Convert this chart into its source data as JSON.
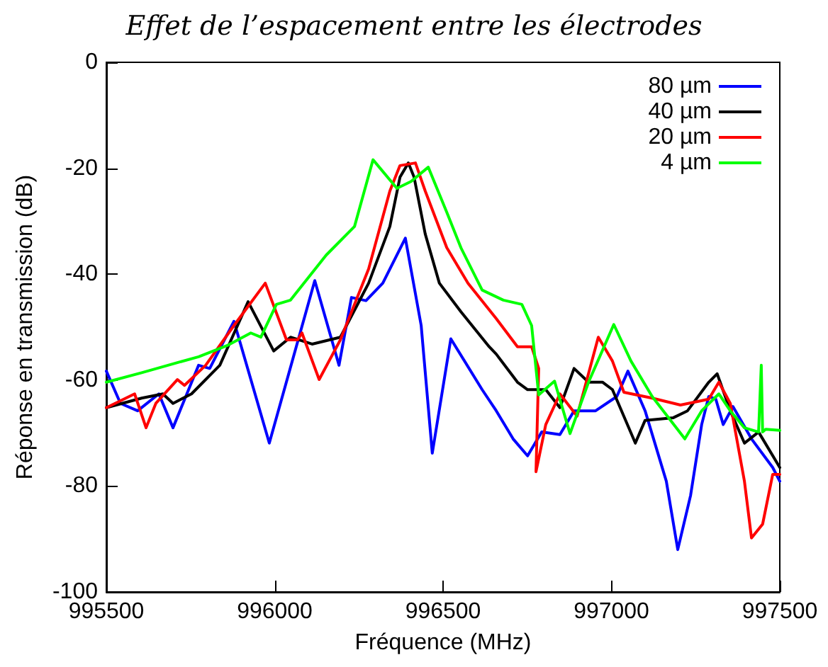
{
  "chart_data": {
    "type": "line",
    "title": "Effet de l’espacement entre les électrodes",
    "xlabel": "Fréquence (MHz)",
    "ylabel": "Réponse en transmission (dB)",
    "xlim": [
      995500,
      997500
    ],
    "xticks": [
      995500,
      996000,
      996500,
      997000,
      997500
    ],
    "ylim": [
      -100,
      0
    ],
    "yticks": [
      -100,
      -80,
      -60,
      -40,
      -20,
      0
    ],
    "grid": false,
    "legend": "top right",
    "marker": "none",
    "line_style": "solid",
    "series": [
      {
        "name": "80 µm",
        "color": "#0000ff",
        "x": [
          995500,
          995542,
          995593,
          995656,
          995698,
          995774,
          995807,
          995879,
          995984,
          996119,
          996191,
          996228,
          996271,
          996321,
          996388,
          996435,
          996468,
          996523,
          996616,
          996658,
          996708,
          996751,
          996793,
          996847,
          996889,
          996953,
          997016,
          997049,
          997100,
          997163,
          997197,
          997235,
          997268,
          997289,
          997310,
          997332,
          997361,
          997416,
          997479,
          997500
        ],
        "values": [
          -58.3,
          -64.4,
          -65.8,
          -62.6,
          -69.0,
          -57.2,
          -57.8,
          -48.9,
          -71.9,
          -41.2,
          -57.2,
          -44.4,
          -45.0,
          -41.7,
          -33.2,
          -49.7,
          -73.8,
          -52.2,
          -61.8,
          -65.8,
          -71.1,
          -74.3,
          -69.8,
          -70.3,
          -65.8,
          -65.8,
          -63.1,
          -58.3,
          -65.8,
          -79.1,
          -92.0,
          -81.8,
          -68.4,
          -63.1,
          -63.6,
          -68.4,
          -65.0,
          -71.1,
          -76.5,
          -79.1
        ]
      },
      {
        "name": "40 µm",
        "color": "#000000",
        "x": [
          995500,
          995605,
          995668,
          995698,
          995753,
          995837,
          995921,
          995997,
          996047,
          996111,
          996195,
          996279,
          996342,
          996372,
          996397,
          996414,
          996447,
          996489,
          996553,
          996637,
          996658,
          996721,
          996751,
          996784,
          996805,
          996847,
          996889,
          996932,
          996974,
          997003,
          997071,
          997100,
          997184,
          997226,
          997289,
          997314,
          997353,
          997395,
          997437,
          997500
        ],
        "values": [
          -65.2,
          -63.4,
          -62.6,
          -64.4,
          -62.6,
          -57.2,
          -45.2,
          -54.5,
          -51.9,
          -53.2,
          -51.9,
          -41.7,
          -31.0,
          -21.7,
          -19.0,
          -21.7,
          -32.4,
          -41.7,
          -47.1,
          -53.7,
          -55.1,
          -60.4,
          -61.8,
          -61.8,
          -61.8,
          -65.2,
          -57.8,
          -60.4,
          -60.4,
          -61.8,
          -71.9,
          -67.6,
          -67.1,
          -65.8,
          -60.4,
          -58.8,
          -65.8,
          -71.9,
          -69.8,
          -76.5
        ]
      },
      {
        "name": "20 µm",
        "color": "#ff0000",
        "x": [
          995500,
          995584,
          995618,
          995647,
          995711,
          995732,
          995795,
          995879,
          995972,
          996035,
          996068,
          996081,
          996132,
          996195,
          996279,
          996342,
          996372,
          996418,
          996447,
          996511,
          996574,
          996658,
          996721,
          996763,
          996784,
          996776,
          996805,
          996847,
          996898,
          996961,
          997003,
          997037,
          997121,
          997205,
          997289,
          997319,
          997353,
          997395,
          997416,
          997449,
          997479,
          997500
        ],
        "values": [
          -65.2,
          -62.6,
          -69.0,
          -64.4,
          -59.9,
          -61.0,
          -57.2,
          -49.7,
          -41.7,
          -52.4,
          -52.4,
          -51.1,
          -59.9,
          -52.4,
          -39.0,
          -24.3,
          -19.5,
          -19.0,
          -24.3,
          -35.0,
          -41.7,
          -48.4,
          -53.7,
          -53.7,
          -57.8,
          -77.3,
          -68.4,
          -62.6,
          -66.8,
          -51.9,
          -56.4,
          -62.3,
          -63.4,
          -64.7,
          -63.6,
          -60.4,
          -64.4,
          -79.1,
          -89.8,
          -87.2,
          -77.8,
          -77.8
        ]
      },
      {
        "name": "4 µm",
        "color": "#00ff00",
        "x": [
          995500,
          995605,
          995711,
          995774,
          995858,
          995929,
          995959,
          996005,
          996047,
          996153,
          996237,
          996292,
          996363,
          996405,
          996456,
          996511,
          996553,
          996616,
          996679,
          996734,
          996763,
          996784,
          996831,
          996877,
          996932,
          997007,
          997058,
          997121,
          997218,
          997268,
          997319,
          997353,
          997395,
          997437,
          997445,
          997449,
          997458,
          997500
        ],
        "values": [
          -60.4,
          -58.6,
          -56.7,
          -55.6,
          -53.5,
          -51.1,
          -51.9,
          -45.7,
          -44.9,
          -36.4,
          -31.0,
          -18.4,
          -23.8,
          -22.5,
          -19.8,
          -28.3,
          -35.0,
          -43.0,
          -44.9,
          -45.7,
          -49.7,
          -62.8,
          -60.2,
          -70.1,
          -60.4,
          -49.5,
          -56.4,
          -63.1,
          -71.1,
          -65.8,
          -62.6,
          -65.8,
          -69.0,
          -69.8,
          -57.2,
          -69.8,
          -69.3,
          -69.5
        ]
      }
    ]
  }
}
